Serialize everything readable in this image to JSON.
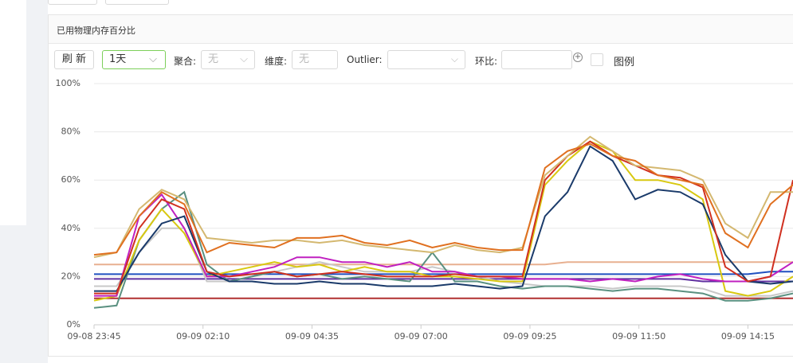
{
  "panel": {
    "title": "已用物理内存百分比"
  },
  "toolbar": {
    "refresh": "刷 新",
    "range": "1天",
    "agg_label": "聚合:",
    "agg_value": "无",
    "dim_label": "维度:",
    "dim_value": "无",
    "outlier_label": "Outlier:",
    "ratio_label": "环比:",
    "legend_label": "图例"
  },
  "chart_data": {
    "type": "line",
    "x": [
      "09-08 23:45",
      "09-09 00:15",
      "09-09 00:45",
      "09-09 01:15",
      "09-09 01:45",
      "09-09 02:15",
      "09-09 02:45",
      "09-09 03:15",
      "09-09 03:45",
      "09-09 04:15",
      "09-09 04:45",
      "09-09 05:15",
      "09-09 05:45",
      "09-09 06:15",
      "09-09 06:45",
      "09-09 07:15",
      "09-09 07:45",
      "09-09 08:15",
      "09-09 08:45",
      "09-09 09:15",
      "09-09 09:45",
      "09-09 10:15",
      "09-09 10:45",
      "09-09 11:15",
      "09-09 11:45",
      "09-09 12:15",
      "09-09 12:45",
      "09-09 13:15",
      "09-09 13:45",
      "09-09 14:15",
      "09-09 14:45",
      "09-09 15:15"
    ],
    "xlim": [
      "09-08 23:45",
      "09-09 15:15"
    ],
    "xticks": [
      "09-08 23:45",
      "09-09 02:10",
      "09-09 04:35",
      "09-09 07:00",
      "09-09 09:25",
      "09-09 11:50",
      "09-09 14:15"
    ],
    "ylim": [
      0,
      100
    ],
    "yticks": [
      {
        "value": 0,
        "label": "0%"
      },
      {
        "value": 20,
        "label": "20%"
      },
      {
        "value": 40,
        "label": "40%"
      },
      {
        "value": 60,
        "label": "60%"
      },
      {
        "value": 80,
        "label": "80%"
      },
      {
        "value": 100,
        "label": "100%"
      }
    ],
    "grid": true,
    "series": [
      {
        "color": "#b03030",
        "values": [
          11,
          11,
          11,
          11,
          11,
          11,
          11,
          11,
          11,
          11,
          11,
          11,
          11,
          11,
          11,
          11,
          11,
          11,
          11,
          11,
          11,
          11,
          11,
          11,
          11,
          11,
          11,
          11,
          11,
          11,
          11,
          11
        ]
      },
      {
        "color": "#e8b090",
        "values": [
          25,
          25,
          25,
          25,
          25,
          25,
          25,
          25,
          25,
          25,
          25,
          25,
          25,
          25,
          25,
          25,
          25,
          25,
          25,
          25,
          25,
          26,
          26,
          26,
          26,
          26,
          26,
          26,
          26,
          26,
          26,
          26
        ]
      },
      {
        "color": "#6030a0",
        "values": [
          19,
          19,
          19,
          19,
          19,
          19,
          19,
          19,
          19,
          19,
          19,
          19,
          19,
          19,
          19,
          19,
          19,
          19,
          19,
          19,
          19,
          19,
          19,
          19,
          19,
          19,
          19,
          18,
          18,
          18,
          18,
          18
        ]
      },
      {
        "color": "#2050c0",
        "values": [
          21,
          21,
          21,
          21,
          21,
          21,
          21,
          21,
          21,
          21,
          21,
          21,
          21,
          21,
          21,
          21,
          21,
          21,
          21,
          21,
          21,
          21,
          21,
          21,
          21,
          21,
          21,
          21,
          21,
          21,
          22,
          22
        ]
      },
      {
        "color": "#c8c8c8",
        "values": [
          16,
          16,
          30,
          40,
          40,
          18,
          18,
          20,
          22,
          24,
          26,
          24,
          22,
          22,
          22,
          24,
          22,
          20,
          18,
          17,
          16,
          16,
          16,
          15,
          16,
          16,
          16,
          15,
          12,
          12,
          12,
          14
        ]
      },
      {
        "color": "#5a9080",
        "values": [
          7,
          8,
          35,
          48,
          55,
          25,
          18,
          20,
          22,
          20,
          21,
          19,
          20,
          19,
          18,
          30,
          18,
          18,
          16,
          15,
          16,
          16,
          15,
          14,
          15,
          15,
          14,
          13,
          10,
          10,
          11,
          13
        ]
      },
      {
        "color": "#d8c810",
        "values": [
          10,
          12,
          35,
          48,
          38,
          20,
          22,
          24,
          26,
          24,
          25,
          22,
          24,
          22,
          22,
          20,
          20,
          19,
          18,
          18,
          58,
          68,
          76,
          72,
          60,
          60,
          58,
          52,
          14,
          12,
          14,
          20
        ]
      },
      {
        "color": "#c020c0",
        "values": [
          12,
          12,
          45,
          54,
          40,
          20,
          20,
          22,
          24,
          28,
          28,
          26,
          26,
          24,
          26,
          22,
          22,
          20,
          20,
          19,
          19,
          19,
          18,
          19,
          18,
          20,
          21,
          19,
          18,
          18,
          20,
          26
        ]
      },
      {
        "color": "#1a3a6a",
        "values": [
          14,
          14,
          30,
          42,
          45,
          22,
          18,
          18,
          17,
          17,
          18,
          17,
          17,
          16,
          16,
          16,
          17,
          16,
          15,
          16,
          45,
          55,
          74,
          68,
          52,
          56,
          55,
          50,
          29,
          18,
          17,
          18
        ]
      },
      {
        "color": "#d03020",
        "values": [
          13,
          13,
          40,
          52,
          48,
          22,
          20,
          21,
          22,
          20,
          21,
          22,
          21,
          20,
          20,
          20,
          21,
          20,
          20,
          20,
          60,
          70,
          76,
          70,
          66,
          62,
          61,
          57,
          24,
          18,
          20,
          60
        ]
      },
      {
        "color": "#d4b870",
        "values": [
          28,
          30,
          48,
          56,
          52,
          36,
          35,
          34,
          35,
          35,
          34,
          35,
          33,
          32,
          31,
          30,
          33,
          31,
          30,
          32,
          62,
          70,
          78,
          72,
          66,
          65,
          64,
          60,
          42,
          36,
          55,
          55
        ]
      },
      {
        "color": "#e07020",
        "values": [
          29,
          30,
          45,
          55,
          50,
          30,
          34,
          33,
          32,
          36,
          36,
          37,
          34,
          33,
          35,
          32,
          34,
          32,
          31,
          31,
          65,
          72,
          75,
          70,
          68,
          62,
          60,
          58,
          38,
          32,
          50,
          58
        ]
      }
    ]
  }
}
